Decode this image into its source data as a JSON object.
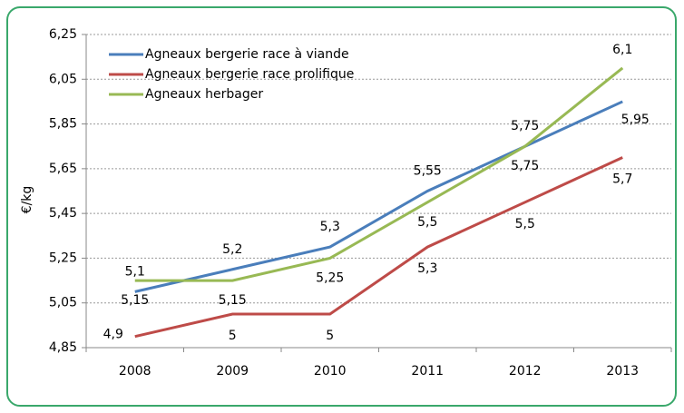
{
  "chart_data": {
    "type": "line",
    "ylabel": "€/kg",
    "categories": [
      "2008",
      "2009",
      "2010",
      "2011",
      "2012",
      "2013"
    ],
    "series": [
      {
        "name": "Agneaux bergerie race à viande",
        "color": "#4a7ebb",
        "values": [
          5.1,
          5.2,
          5.3,
          5.55,
          5.75,
          5.95
        ],
        "value_labels": [
          "5,1",
          "5,2",
          "5,3",
          "5,55",
          "5,75",
          "5,95"
        ]
      },
      {
        "name": "Agneaux bergerie race prolifique",
        "color": "#be4b48",
        "values": [
          4.9,
          5,
          5,
          5.3,
          5.5,
          5.7
        ],
        "value_labels": [
          "4,9",
          "5",
          "5",
          "5,3",
          "5,5",
          "5,7"
        ]
      },
      {
        "name": "Agneaux herbager",
        "color": "#98b954",
        "values": [
          5.15,
          5.15,
          5.25,
          5.5,
          5.75,
          6.1
        ],
        "value_labels": [
          "5,15",
          "5,15",
          "5,25",
          "5,5",
          "5,75",
          "6,1"
        ]
      }
    ],
    "ylim": [
      4.85,
      6.25
    ],
    "yticks": [
      {
        "value": 4.85,
        "label": "4,85"
      },
      {
        "value": 5.05,
        "label": "5,05"
      },
      {
        "value": 5.25,
        "label": "5,25"
      },
      {
        "value": 5.45,
        "label": "5,45"
      },
      {
        "value": 5.65,
        "label": "5,65"
      },
      {
        "value": 5.85,
        "label": "5,85"
      },
      {
        "value": 6.05,
        "label": "6,05"
      },
      {
        "value": 6.25,
        "label": "6,25"
      }
    ],
    "grid": true,
    "legend": "upper left"
  }
}
